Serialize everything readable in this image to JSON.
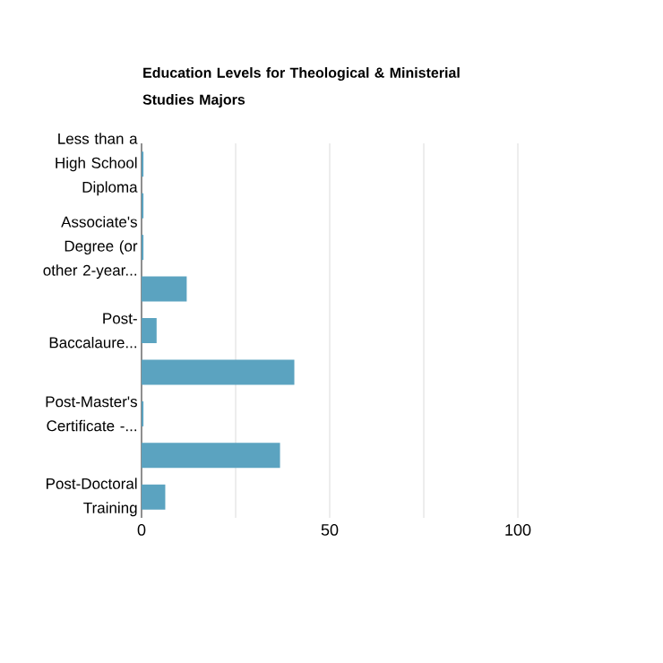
{
  "chart_data": {
    "type": "bar",
    "orientation": "horizontal",
    "title": "Education Levels for Theological & Ministerial Studies Majors",
    "categories": [
      "Less than a High School Diploma",
      null,
      "Associate's Degree (or other 2-year...",
      null,
      "Post-Baccalaure...",
      null,
      "Post-Master's Certificate -...",
      null,
      "Post-Doctoral Training"
    ],
    "values": [
      0.5,
      0.5,
      0.5,
      12,
      4,
      40.6,
      0.5,
      36.8,
      6.3
    ],
    "color": "#5ba3c0",
    "xlim": [
      0,
      100
    ],
    "xticks": [
      0,
      {
        "value": 25,
        "label": null
      },
      50,
      {
        "value": 75,
        "label": null
      },
      100
    ],
    "grid": "x"
  }
}
